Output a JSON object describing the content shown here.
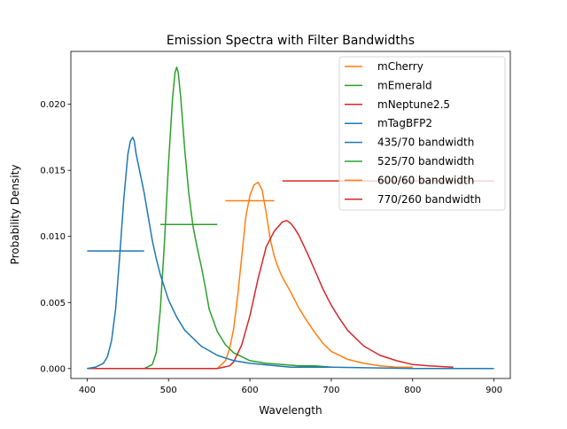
{
  "chart_data": {
    "type": "line",
    "title": "Emission Spectra with Filter Bandwidths",
    "xlabel": "Wavelength",
    "ylabel": "Probability Density",
    "xlim": [
      380,
      920
    ],
    "ylim": [
      -0.00075,
      0.024
    ],
    "xticks": [
      400,
      500,
      600,
      700,
      800,
      900
    ],
    "yticks": [
      0.0,
      0.005,
      0.01,
      0.015,
      0.02
    ],
    "ytick_labels": [
      "0.000",
      "0.005",
      "0.010",
      "0.015",
      "0.020"
    ],
    "grid": false,
    "legend_position": "top-right",
    "series": [
      {
        "name": "mCherry",
        "color": "#ff7f0e",
        "x": [
          400,
          560,
          570,
          575,
          580,
          585,
          590,
          595,
          600,
          605,
          610,
          615,
          620,
          625,
          630,
          635,
          640,
          650,
          660,
          670,
          680,
          690,
          700,
          720,
          740,
          760,
          780,
          800
        ],
        "y": [
          0.0,
          0.0,
          0.0006,
          0.0015,
          0.003,
          0.0055,
          0.0085,
          0.0115,
          0.0131,
          0.0139,
          0.0141,
          0.0135,
          0.0118,
          0.0098,
          0.0085,
          0.0076,
          0.0069,
          0.0058,
          0.0046,
          0.0036,
          0.0027,
          0.0019,
          0.0013,
          0.0007,
          0.0004,
          0.0002,
          0.0001,
          0.0001
        ]
      },
      {
        "name": "mEmerald",
        "color": "#2ca02c",
        "x": [
          400,
          470,
          480,
          485,
          490,
          495,
          500,
          505,
          508,
          510,
          512,
          515,
          520,
          525,
          530,
          535,
          540,
          545,
          550,
          560,
          570,
          580,
          600,
          620,
          640,
          660,
          680,
          700
        ],
        "y": [
          0.0,
          0.0,
          0.0003,
          0.0012,
          0.0045,
          0.0095,
          0.0155,
          0.0205,
          0.0224,
          0.0228,
          0.0224,
          0.0205,
          0.0165,
          0.0132,
          0.0108,
          0.0092,
          0.0078,
          0.0062,
          0.0045,
          0.0028,
          0.0018,
          0.0012,
          0.0006,
          0.0004,
          0.0003,
          0.0002,
          0.0002,
          0.0001
        ]
      },
      {
        "name": "mNeptune2.5",
        "color": "#d62728",
        "x": [
          400,
          560,
          575,
          580,
          590,
          600,
          610,
          620,
          630,
          640,
          645,
          650,
          655,
          660,
          670,
          680,
          690,
          700,
          710,
          720,
          740,
          760,
          780,
          800,
          820,
          850
        ],
        "y": [
          0.0,
          0.0,
          0.0002,
          0.0005,
          0.0018,
          0.004,
          0.0068,
          0.0092,
          0.0104,
          0.0111,
          0.0112,
          0.011,
          0.0106,
          0.0101,
          0.0088,
          0.0074,
          0.006,
          0.0048,
          0.0038,
          0.0029,
          0.0017,
          0.001,
          0.0006,
          0.0003,
          0.0002,
          0.0001
        ]
      },
      {
        "name": "mTagBFP2",
        "color": "#1f77b4",
        "x": [
          400,
          410,
          420,
          425,
          430,
          435,
          440,
          445,
          450,
          453,
          456,
          458,
          460,
          465,
          470,
          475,
          480,
          485,
          490,
          500,
          510,
          520,
          540,
          560,
          580,
          600,
          650,
          700,
          800,
          900
        ],
        "y": [
          0.0,
          0.0001,
          0.0004,
          0.0009,
          0.0021,
          0.0045,
          0.0085,
          0.0128,
          0.0162,
          0.0172,
          0.0175,
          0.0172,
          0.0163,
          0.0148,
          0.0133,
          0.0115,
          0.0097,
          0.0083,
          0.0071,
          0.0052,
          0.0039,
          0.0029,
          0.0017,
          0.001,
          0.0006,
          0.0004,
          0.0001,
          0.0001,
          0.0,
          0.0
        ]
      }
    ],
    "bandwidths": [
      {
        "name": "435/70 bandwidth",
        "color": "#1f77b4",
        "x": [
          400,
          470
        ],
        "y": 0.0089
      },
      {
        "name": "525/70 bandwidth",
        "color": "#2ca02c",
        "x": [
          490,
          560
        ],
        "y": 0.0109
      },
      {
        "name": "600/60 bandwidth",
        "color": "#ff7f0e",
        "x": [
          570,
          630
        ],
        "y": 0.0127
      },
      {
        "name": "770/260 bandwidth",
        "color": "#d62728",
        "x": [
          640,
          900
        ],
        "y": 0.0142
      }
    ]
  }
}
